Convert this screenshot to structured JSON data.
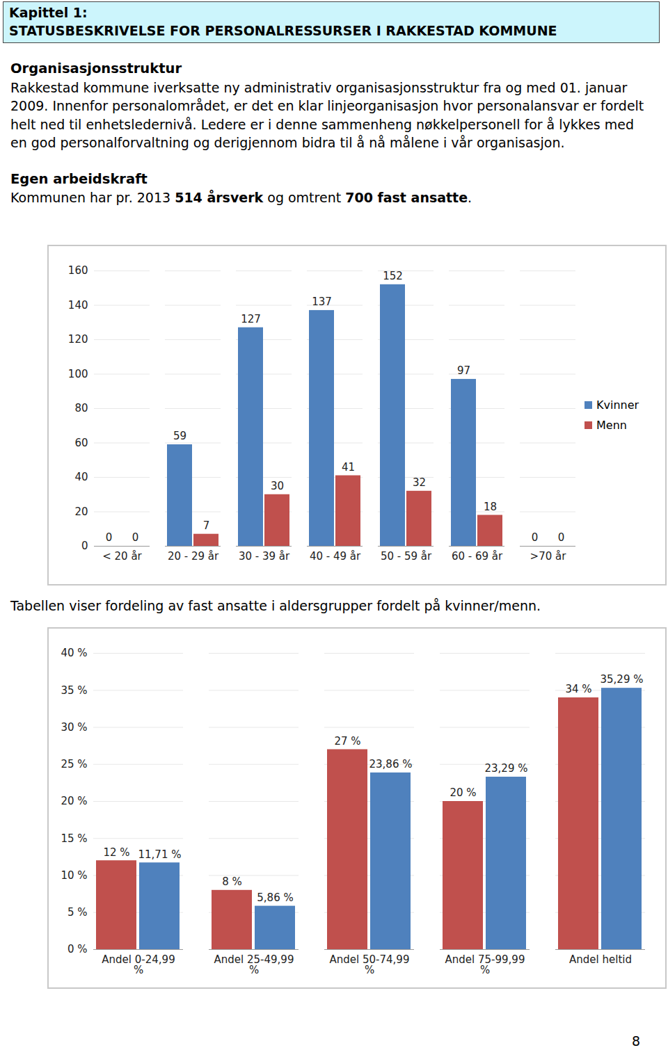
{
  "header": {
    "line1": "Kapittel 1:",
    "line2": "STATUSBESKRIVELSE FOR PERSONALRESSURSER I RAKKESTAD KOMMUNE"
  },
  "sections": [
    {
      "heading": "Organisasjonsstruktur",
      "paragraph": [
        {
          "text": "Rakkestad kommune iverksatte ny administrativ organisasjonsstruktur fra og med 01. januar 2009. Innenfor personalområdet, er det en klar linjeorganisasjon hvor personalansvar er fordelt helt ned til enhetsledernivå. Ledere er i denne sammenheng nøkkelpersonell for å lykkes med en god personalforvaltning og derigjennom bidra til å nå målene i vår organisasjon."
        }
      ]
    },
    {
      "heading": "Egen arbeidskraft",
      "paragraph": [
        {
          "text": "Kommunen har pr. 2013 "
        },
        {
          "text": "514 årsverk",
          "bold": true
        },
        {
          "text": " og omtrent "
        },
        {
          "text": "700 fast ansatte",
          "bold": true
        },
        {
          "text": "."
        }
      ]
    }
  ],
  "chart_data": [
    {
      "type": "bar",
      "categories": [
        "< 20 år",
        "20 - 29 år",
        "30 - 39 år",
        "40 - 49 år",
        "50 - 59 år",
        "60 - 69 år",
        ">70 år"
      ],
      "series": [
        {
          "name": "Kvinner",
          "color": "#4f81bd",
          "values": [
            0,
            59,
            127,
            137,
            152,
            97,
            0
          ]
        },
        {
          "name": "Menn",
          "color": "#c0504d",
          "values": [
            0,
            7,
            30,
            41,
            32,
            18,
            0
          ]
        }
      ],
      "ylim": [
        0,
        160
      ],
      "yticks": [
        0,
        20,
        40,
        60,
        80,
        100,
        120,
        140,
        160
      ],
      "grid": true,
      "legend": "right",
      "data_labels": true
    },
    {
      "type": "bar",
      "categories": [
        "Andel 0-24,99 %",
        "Andel 25-49,99 %",
        "Andel 50-74,99 %",
        "Andel 75-99,99 %",
        "Andel heltid"
      ],
      "series": [
        {
          "color": "#c0504d",
          "values": [
            12,
            8,
            27,
            20,
            34
          ],
          "value_labels": [
            "12 %",
            "8 %",
            "27 %",
            "20 %",
            "34 %"
          ]
        },
        {
          "color": "#4f81bd",
          "values": [
            11.71,
            5.86,
            23.86,
            23.29,
            35.29
          ],
          "value_labels": [
            "11,71 %",
            "5,86 %",
            "23,86 %",
            "23,29 %",
            "35,29 %"
          ]
        }
      ],
      "ylim": [
        0,
        40
      ],
      "yticks": [
        {
          "value": 0,
          "label": "0 %"
        },
        {
          "value": 5,
          "label": "5 %"
        },
        {
          "value": 10,
          "label": "10 %"
        },
        {
          "value": 15,
          "label": "15 %"
        },
        {
          "value": 20,
          "label": "20 %"
        },
        {
          "value": 25,
          "label": "25 %"
        },
        {
          "value": 30,
          "label": "30 %"
        },
        {
          "value": 35,
          "label": "35 %"
        },
        {
          "value": 40,
          "label": "40 %"
        }
      ],
      "grid": true,
      "data_labels": true
    }
  ],
  "caption": "Tabellen viser fordeling av fast ansatte i aldersgrupper fordelt på kvinner/menn.",
  "page_number": 8
}
